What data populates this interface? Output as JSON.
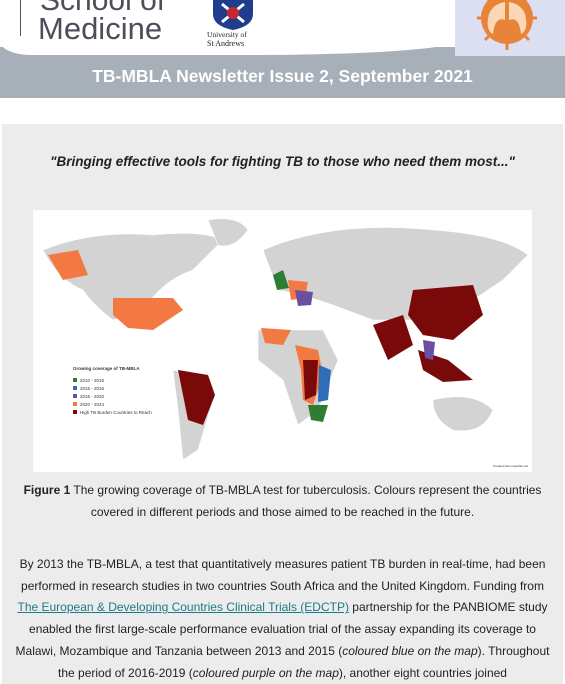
{
  "header": {
    "logo_line1": "School of",
    "logo_line2": "Medicine",
    "university_line1": "University of",
    "university_line2": "St Andrews",
    "title": "TB-MBLA Newsletter Issue 2, September 2021"
  },
  "quote": "\"Bringing effective tools for fighting TB to those who need them most...\"",
  "figure": {
    "legend_title": "Growing coverage of TB-MBLA",
    "legend_items": [
      "2010 - 2015",
      "2015 - 2016",
      "2016 - 2020",
      "2020 - 2024",
      "High TB Burden Countries to Reach"
    ],
    "credit": "Created with mapchart.net",
    "caption_label": "Figure 1",
    "caption_text": " The growing coverage of TB-MBLA test for tuberculosis. Colours represent the countries covered in different periods and those aimed to be reached in the future."
  },
  "paragraph": {
    "text1": "By 2013 the TB-MBLA, a test that quantitatively measures patient TB burden in real-time, had been performed in research studies in two countries South Africa and the United Kingdom. Funding from ",
    "link": "The European & Developing Countries Clinical Trials (EDCTP)",
    "text2": " partnership for the PANBIOME study enabled the first large-scale performance evaluation trial of the assay expanding its coverage to Malawi, Mozambique and Tanzania between 2013 and 2015 (",
    "italic1": "coloured blue on the map",
    "text3": "). Throughout the period of 2016-2019 (",
    "italic2": "coloured purple on the map",
    "text4": "), another eight countries joined"
  }
}
